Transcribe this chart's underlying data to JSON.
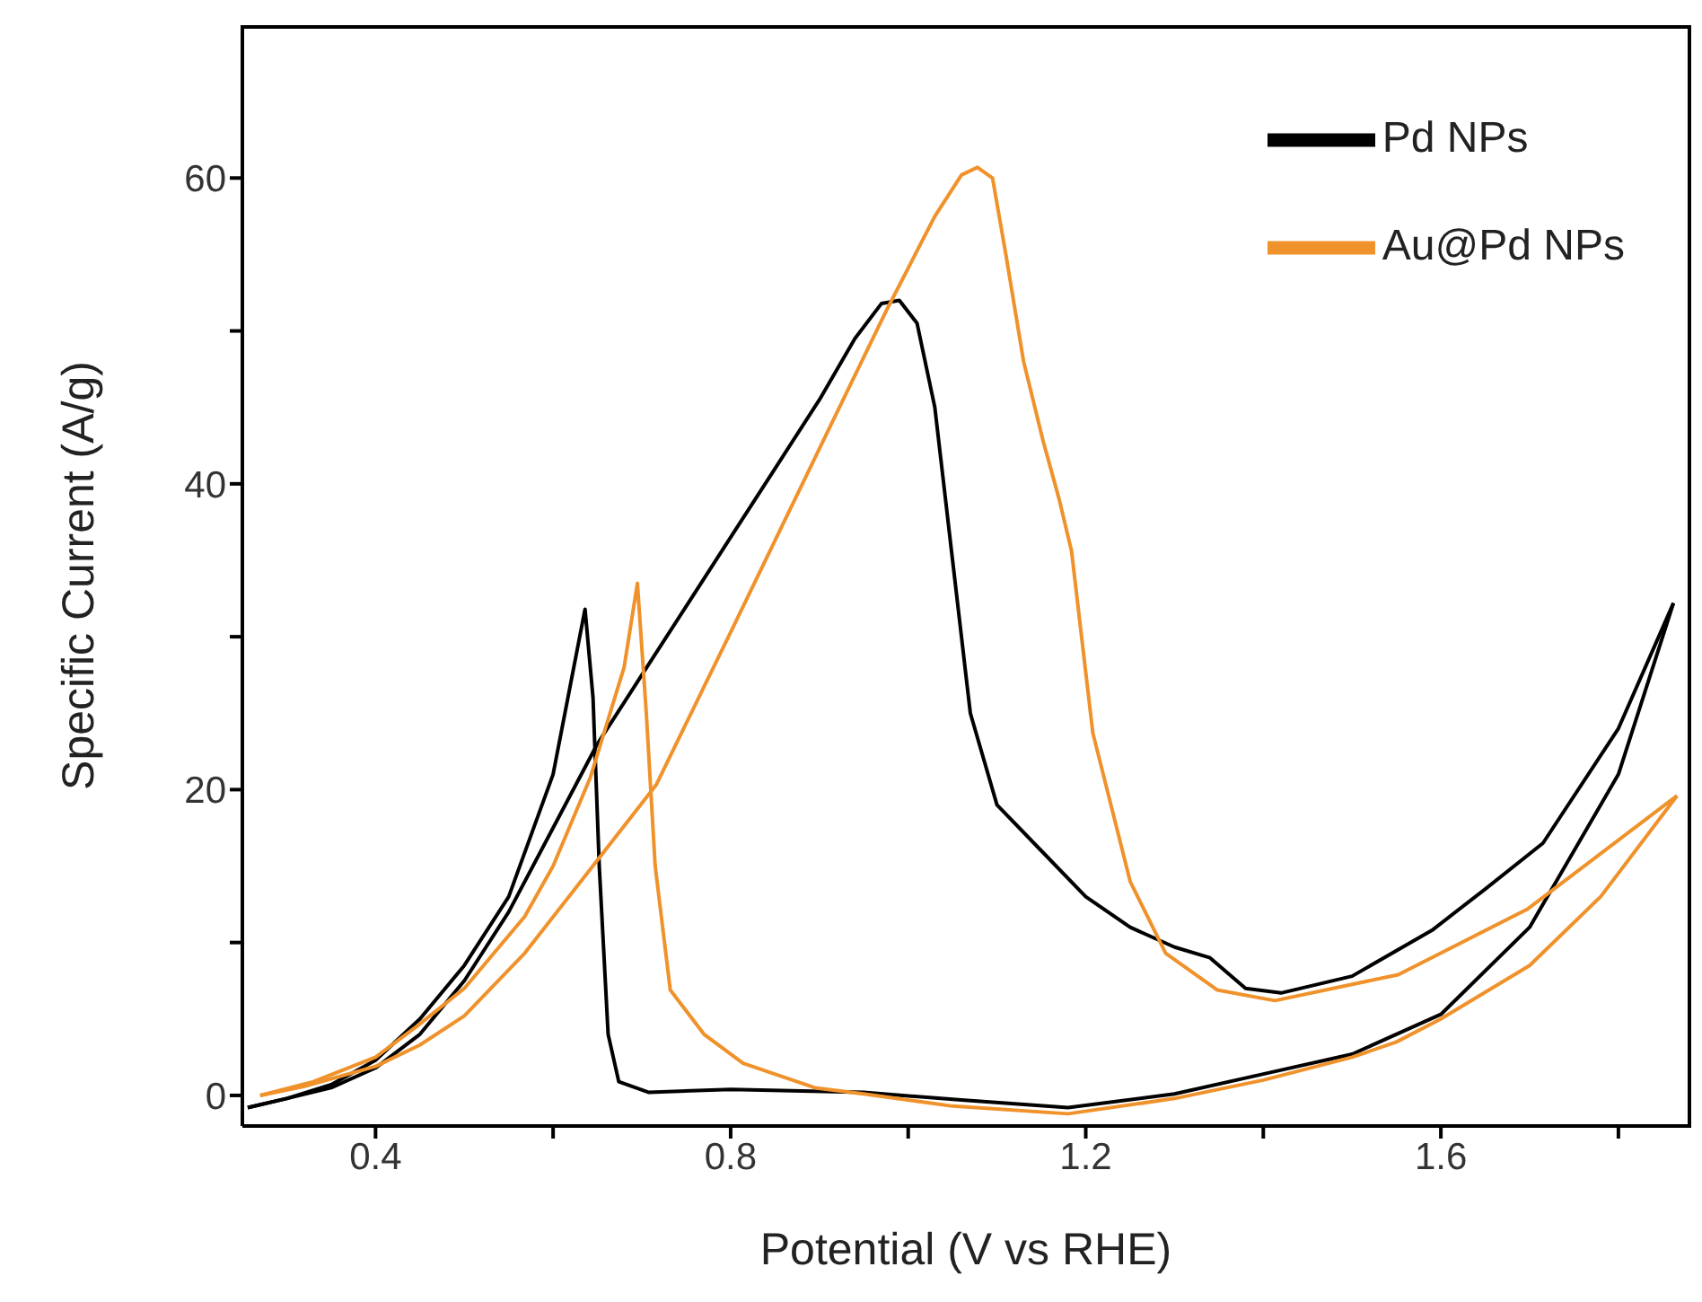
{
  "chart_data": {
    "type": "line",
    "xlabel": "Potential (V vs RHE)",
    "ylabel": "Specific Current (A/g)",
    "xlim": [
      0.25,
      1.88
    ],
    "ylim": [
      -2,
      70
    ],
    "xticks": [
      0.4,
      {
        "value": 0.6,
        "label": null
      },
      0.8,
      {
        "value": 1.0,
        "label": null
      },
      1.2,
      {
        "value": 1.4,
        "label": null
      },
      1.6,
      {
        "value": 1.8,
        "label": null
      }
    ],
    "yticks": [
      0,
      {
        "value": 10,
        "label": null
      },
      20,
      {
        "value": 30,
        "label": null
      },
      40,
      {
        "value": 50,
        "label": null
      },
      60
    ],
    "grid": false,
    "legend": "top right",
    "line_style": "solid",
    "series": [
      {
        "name": "Pd NPs",
        "color": "#000000",
        "x": [
          0.256,
          0.3,
          0.35,
          0.4,
          0.45,
          0.5,
          0.55,
          0.6,
          0.65,
          0.7,
          0.75,
          0.8,
          0.85,
          0.9,
          0.94,
          0.97,
          0.99,
          1.01,
          1.03,
          1.05,
          1.07,
          1.1,
          1.15,
          1.2,
          1.25,
          1.3,
          1.34,
          1.36,
          1.38,
          1.42,
          1.5,
          1.59,
          1.65,
          1.715,
          1.8,
          1.862
        ],
        "values": [
          -0.8,
          -0.2,
          0.5,
          1.8,
          4,
          7.5,
          12,
          17.5,
          23,
          27.5,
          32,
          36.5,
          41,
          45.5,
          49.5,
          51.8,
          52,
          50.5,
          45,
          35,
          25,
          19,
          16,
          13,
          11,
          9.7,
          9,
          8,
          7,
          6.7,
          7.8,
          10.8,
          13.5,
          16.5,
          24,
          32.2
        ]
      },
      {
        "color": "#000000",
        "x": [
          1.862,
          1.8,
          1.7,
          1.6,
          1.5,
          1.4,
          1.3,
          1.18,
          1.06,
          0.95,
          0.8,
          0.708,
          0.674,
          0.662,
          0.652,
          0.645,
          0.636,
          0.62,
          0.6,
          0.55,
          0.5,
          0.45,
          0.4,
          0.35,
          0.3,
          0.256
        ],
        "values": [
          32.2,
          21,
          11,
          5.3,
          2.7,
          1.4,
          0.1,
          -0.8,
          -0.3,
          0.2,
          0.4,
          0.2,
          0.9,
          4,
          15,
          26,
          31.8,
          27,
          21,
          13,
          8.5,
          5,
          2.3,
          0.7,
          -0.2,
          -0.8
        ]
      },
      {
        "name": "Au@Pd NPs",
        "color": "#f0922b",
        "x": [
          0.27,
          0.32,
          0.4,
          0.45,
          0.5,
          0.568,
          0.642,
          0.716,
          0.8,
          0.9,
          0.976,
          1.03,
          1.06,
          1.078,
          1.095,
          1.11,
          1.13,
          1.152,
          1.17,
          1.184,
          1.208,
          1.25,
          1.29,
          1.348,
          1.413,
          1.552,
          1.698,
          1.866
        ],
        "values": [
          0,
          0.6,
          1.9,
          3.3,
          5.2,
          9.3,
          14.8,
          20.3,
          30.3,
          42.3,
          51.4,
          57.5,
          60.2,
          60.7,
          60,
          55,
          48,
          42.8,
          39,
          35.6,
          23.7,
          14,
          9.3,
          6.9,
          6.2,
          7.9,
          12.2,
          19.6
        ]
      },
      {
        "color": "#f0922b",
        "x": [
          1.866,
          1.78,
          1.7,
          1.6,
          1.55,
          1.5,
          1.4,
          1.3,
          1.18,
          1.05,
          0.95,
          0.895,
          0.814,
          0.77,
          0.732,
          0.715,
          0.705,
          0.695,
          0.68,
          0.642,
          0.6,
          0.568,
          0.5,
          0.446,
          0.4,
          0.33,
          0.27
        ],
        "values": [
          19.6,
          13,
          8.5,
          5,
          3.5,
          2.5,
          1,
          -0.2,
          -1.2,
          -0.7,
          0.1,
          0.5,
          2.1,
          4,
          6.9,
          15,
          25,
          33.5,
          28,
          20.8,
          15,
          11.7,
          7,
          4.5,
          2.5,
          0.9,
          0
        ]
      }
    ]
  }
}
